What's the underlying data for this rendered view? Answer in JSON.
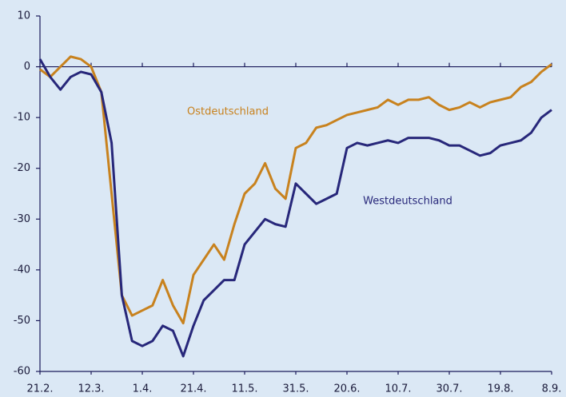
{
  "chart_data": {
    "type": "line",
    "categories": [
      "21.2.",
      null,
      null,
      null,
      null,
      "12.3.",
      null,
      null,
      null,
      null,
      "1.4.",
      null,
      null,
      null,
      null,
      "21.4.",
      null,
      null,
      null,
      null,
      "11.5.",
      null,
      null,
      null,
      null,
      "31.5.",
      null,
      null,
      null,
      null,
      "20.6.",
      null,
      null,
      null,
      null,
      "10.7.",
      null,
      null,
      null,
      null,
      "30.7.",
      null,
      null,
      null,
      null,
      "19.8.",
      null,
      null,
      null,
      null,
      "8.9."
    ],
    "series": [
      {
        "name": "Ostdeutschland",
        "color": "#c8821e",
        "values": [
          -0.5,
          -2,
          0,
          2,
          1.5,
          0,
          -5,
          -25,
          -45,
          -49,
          -48,
          -47,
          -42,
          -47,
          -50.5,
          -41,
          -38,
          -35,
          -38,
          -31,
          -25,
          -23,
          -19,
          -24,
          -26,
          -16,
          -15,
          -12,
          -11.5,
          -10.5,
          -9.5,
          -9,
          -8.5,
          -8,
          -6.5,
          -7.5,
          -6.5,
          -6.5,
          -6,
          -7.5,
          -8.5,
          -8,
          -7,
          -8,
          -7,
          -6.5,
          -6,
          -4,
          -3,
          -1,
          0.5
        ]
      },
      {
        "name": "Westdeutschland",
        "color": "#27277a",
        "values": [
          1.5,
          -2,
          -4.5,
          -2,
          -1,
          -1.5,
          -5,
          -15,
          -45,
          -54,
          -55,
          -54,
          -51,
          -52,
          -57,
          -51,
          -46,
          -44,
          -42,
          -42,
          -35,
          -32.5,
          -30,
          -31,
          -31.5,
          -23,
          -25,
          -27,
          -26,
          -25,
          -16,
          -15,
          -15.5,
          -15,
          -14.5,
          -15,
          -14,
          -14,
          -14,
          -14.5,
          -15.5,
          -15.5,
          -16.5,
          -17.5,
          -17,
          -15.5,
          -15,
          -14.5,
          -13,
          -10,
          -8.5
        ]
      }
    ],
    "ylim": [
      -60,
      10
    ],
    "yticks": [
      10,
      0,
      -10,
      -20,
      -30,
      -40,
      -50,
      -60
    ]
  }
}
